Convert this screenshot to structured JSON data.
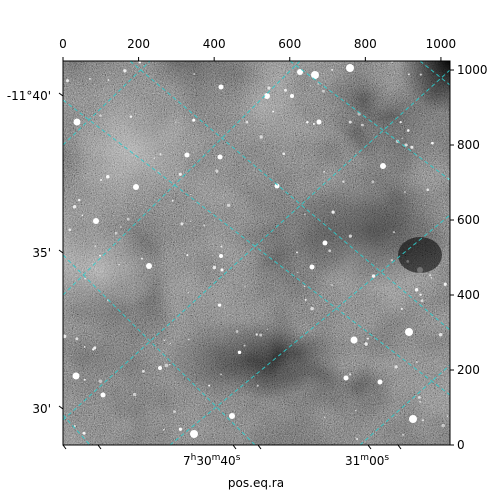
{
  "chart_data": {
    "type": "heatmap",
    "title": "",
    "xlabel": "pos.eq.ra",
    "ylabel": "",
    "pixel_axes": {
      "x_range": [
        0,
        1024
      ],
      "y_range": [
        0,
        1024
      ],
      "x_ticks": [
        0,
        200,
        400,
        600,
        800,
        1000
      ],
      "y_ticks": [
        0,
        200,
        400,
        600,
        800,
        1000
      ]
    },
    "ra_ticks": [
      {
        "label_main": "7",
        "label_sup1": "h",
        "label_mid": "30",
        "label_sup2": "m",
        "label_end": "40",
        "label_sup3": "s"
      },
      {
        "label_main": "31",
        "label_sup1": "m",
        "label_mid": "00",
        "label_sup2": "s",
        "label_end": "",
        "label_sup3": ""
      }
    ],
    "dec_ticks": [
      "-11°40'",
      "35'",
      "30'"
    ],
    "grid": true,
    "grid_color": "#2ecccc",
    "colormap": "gray",
    "image_source": "astronomical sky image (noise field with stars)"
  }
}
